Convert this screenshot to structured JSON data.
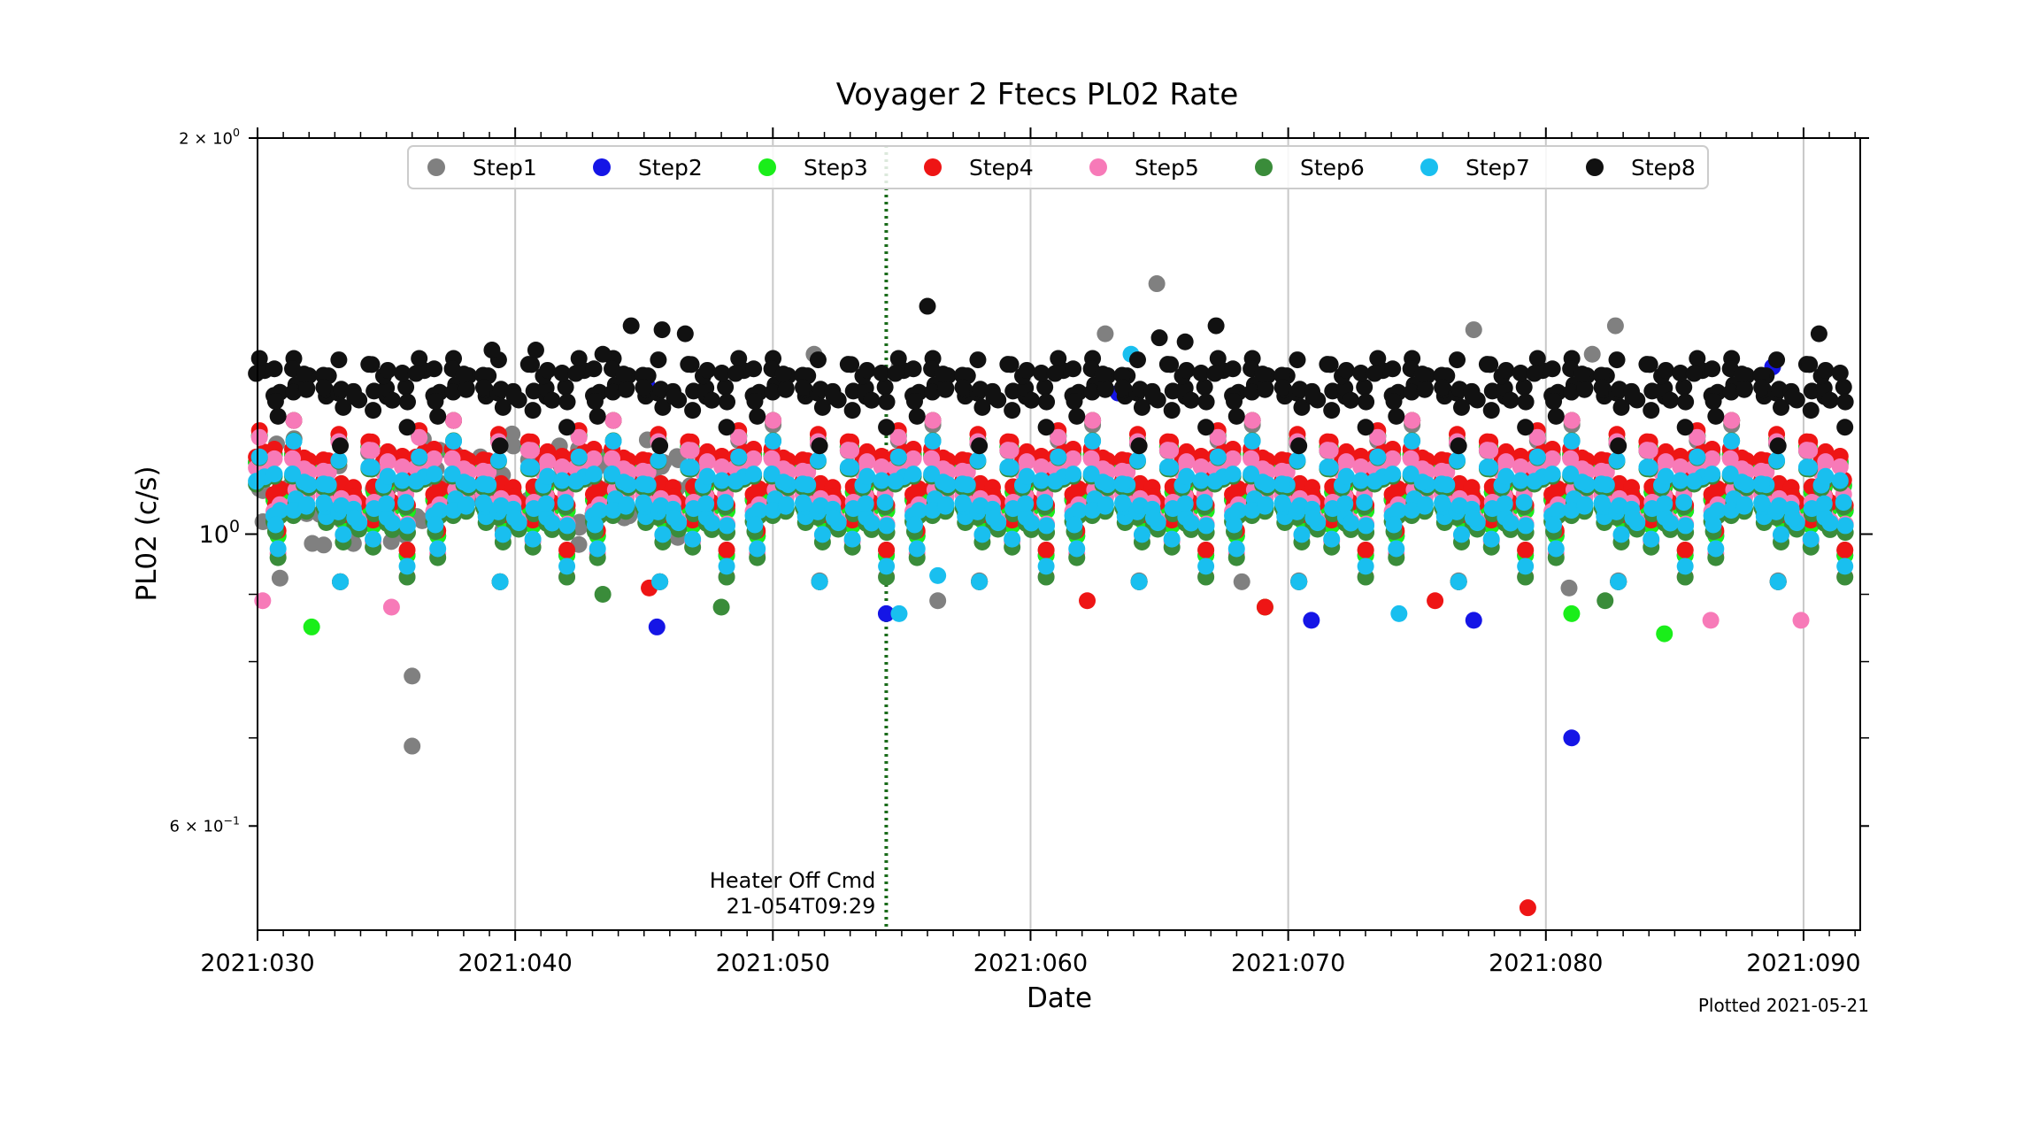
{
  "chart_data": {
    "type": "scatter",
    "title": "Voyager 2 Ftecs PL02 Rate",
    "xlabel": "Date",
    "ylabel": "PL02 (c/s)",
    "xlim": [
      30,
      92.2
    ],
    "ylim": [
      0.5,
      2.0
    ],
    "yscale": "log",
    "grid": "x-only",
    "legend_position": "top-center",
    "x_ticks": [
      {
        "value": 30,
        "label": "2021:030"
      },
      {
        "value": 40,
        "label": "2021:040"
      },
      {
        "value": 50,
        "label": "2021:050"
      },
      {
        "value": 60,
        "label": "2021:060"
      },
      {
        "value": 70,
        "label": "2021:070"
      },
      {
        "value": 80,
        "label": "2021:080"
      },
      {
        "value": 90,
        "label": "2021:090"
      }
    ],
    "y_ticks": [
      {
        "value": 2.0,
        "base": "2 × 10",
        "exp": "0"
      },
      {
        "value": 1.0,
        "base": "10",
        "exp": "0"
      },
      {
        "value": 0.6,
        "base": "6 × 10",
        "exp": "−1"
      }
    ],
    "annotation": {
      "x": 54.4,
      "line1": "Heater Off Cmd",
      "line2": "21-054T09:29",
      "line_color": "#1a6b1a"
    },
    "footer_note": "Plotted 2021-05-21",
    "series": [
      {
        "name": "Step1",
        "color": "#808080",
        "center": 1.07,
        "spread": 0.055,
        "points": [
          [
            36.0,
            0.78
          ],
          [
            36.0,
            0.69
          ],
          [
            62.9,
            1.42
          ],
          [
            64.9,
            1.55
          ],
          [
            77.2,
            1.43
          ],
          [
            82.7,
            1.44
          ],
          [
            81.8,
            1.37
          ],
          [
            54.9,
            1.34
          ],
          [
            51.6,
            1.37
          ],
          [
            56.4,
            0.89
          ],
          [
            68.2,
            0.92
          ],
          [
            80.9,
            0.91
          ]
        ]
      },
      {
        "name": "Step2",
        "color": "#1515e6",
        "center": 1.07,
        "spread": 0.06,
        "points": [
          [
            45.5,
            0.85
          ],
          [
            81.0,
            0.7
          ],
          [
            77.2,
            0.86
          ],
          [
            70.9,
            0.86
          ],
          [
            54.4,
            0.87
          ],
          [
            45.1,
            1.3
          ],
          [
            63.4,
            1.28
          ],
          [
            88.8,
            1.34
          ]
        ]
      },
      {
        "name": "Step3",
        "color": "#1aee1a",
        "center": 1.07,
        "spread": 0.06,
        "points": [
          [
            32.1,
            0.85
          ],
          [
            84.6,
            0.84
          ],
          [
            81.0,
            0.87
          ],
          [
            69.1,
            0.88
          ]
        ]
      },
      {
        "name": "Step4",
        "color": "#ee1515",
        "center": 1.08,
        "spread": 0.06,
        "points": [
          [
            79.3,
            0.52
          ],
          [
            62.2,
            0.89
          ],
          [
            69.1,
            0.88
          ],
          [
            75.7,
            0.89
          ],
          [
            45.2,
            0.91
          ]
        ]
      },
      {
        "name": "Step5",
        "color": "#f77ab8",
        "center": 1.05,
        "spread": 0.07,
        "points": [
          [
            30.2,
            0.89
          ],
          [
            35.2,
            0.88
          ],
          [
            86.4,
            0.86
          ],
          [
            89.9,
            0.86
          ]
        ]
      },
      {
        "name": "Step6",
        "color": "#3a8c3a",
        "center": 1.03,
        "spread": 0.06,
        "points": [
          [
            48.0,
            0.88
          ],
          [
            43.4,
            0.9
          ],
          [
            82.3,
            0.89
          ]
        ]
      },
      {
        "name": "Step7",
        "color": "#19bfef",
        "center": 1.04,
        "spread": 0.055,
        "points": [
          [
            54.9,
            0.87
          ],
          [
            74.3,
            0.87
          ],
          [
            63.9,
            1.37
          ],
          [
            56.4,
            0.93
          ]
        ]
      },
      {
        "name": "Step8",
        "color": "#111111",
        "center": 1.28,
        "spread": 0.035,
        "points": [
          [
            56.0,
            1.49
          ],
          [
            44.5,
            1.44
          ],
          [
            45.7,
            1.43
          ],
          [
            46.6,
            1.42
          ],
          [
            65.0,
            1.41
          ],
          [
            66.0,
            1.4
          ],
          [
            67.2,
            1.44
          ],
          [
            90.6,
            1.42
          ],
          [
            40.8,
            1.38
          ],
          [
            39.1,
            1.38
          ],
          [
            43.4,
            1.37
          ]
        ]
      }
    ]
  }
}
